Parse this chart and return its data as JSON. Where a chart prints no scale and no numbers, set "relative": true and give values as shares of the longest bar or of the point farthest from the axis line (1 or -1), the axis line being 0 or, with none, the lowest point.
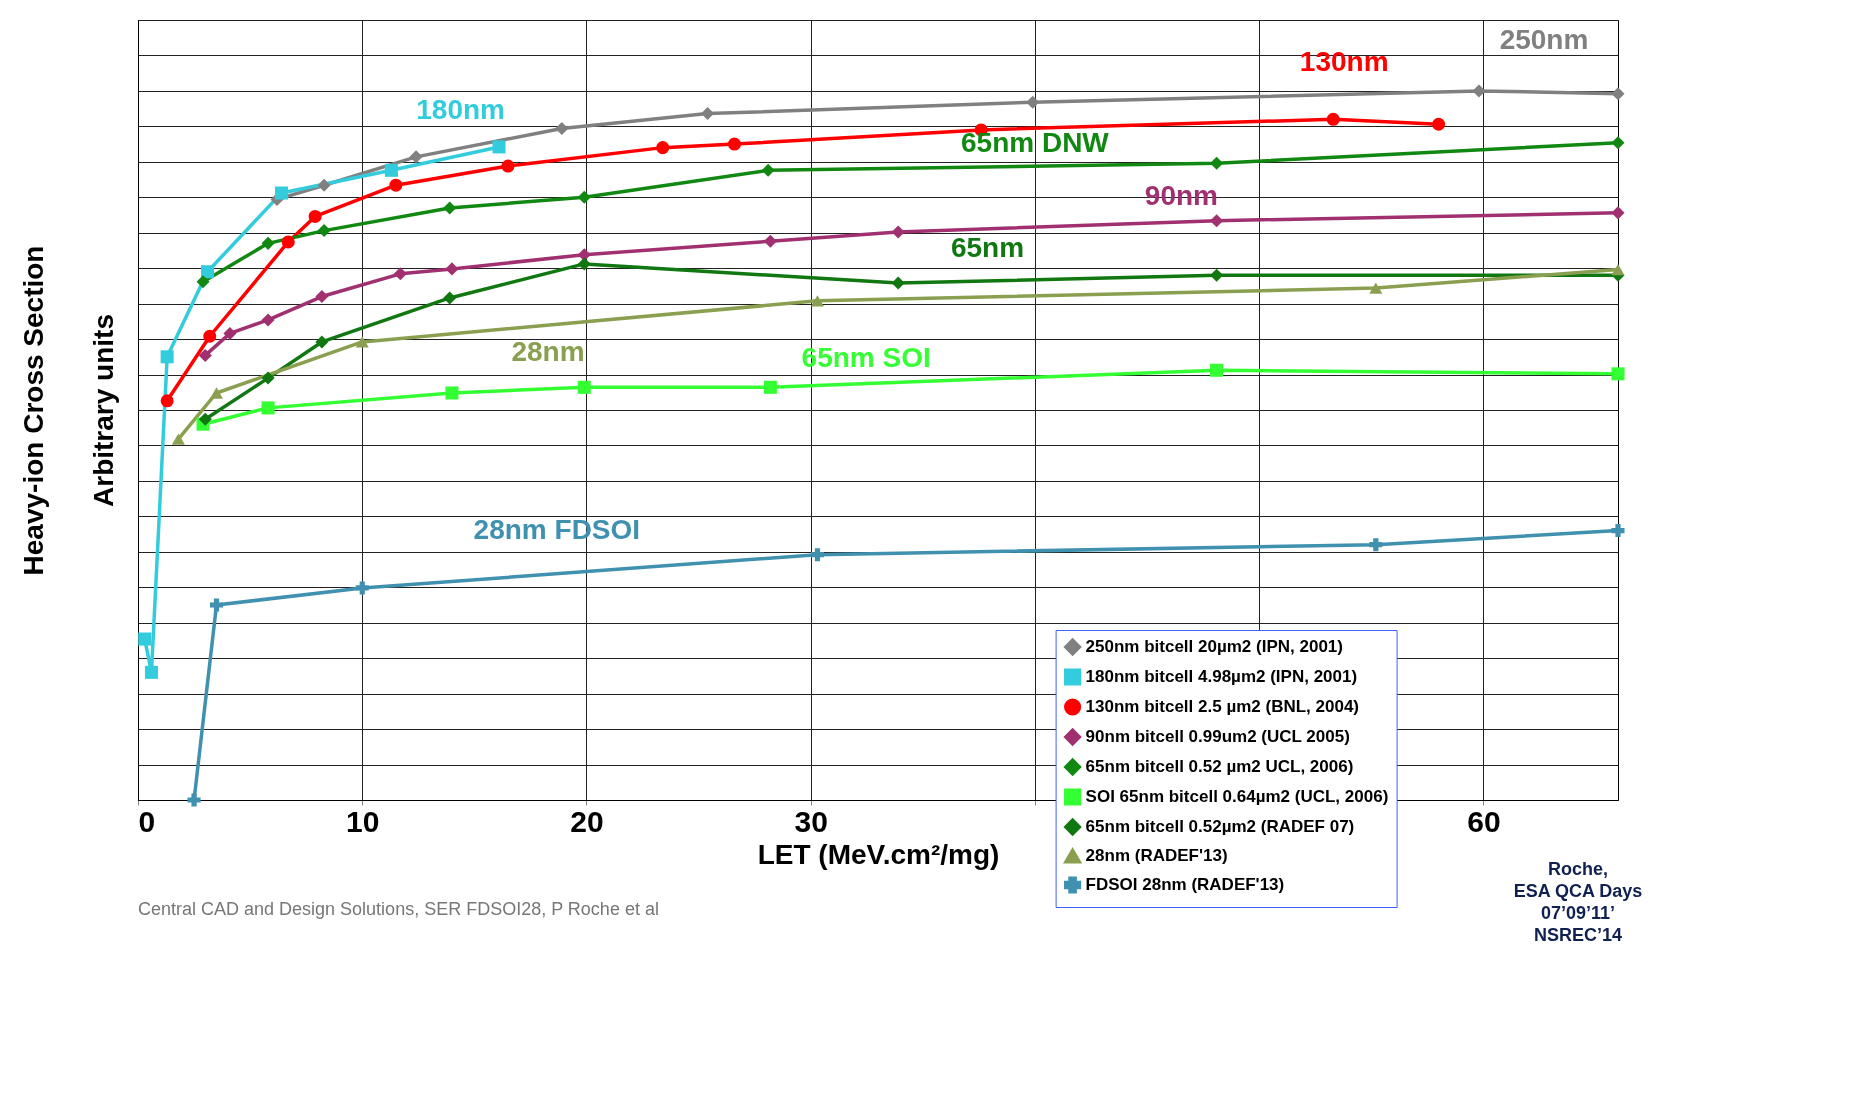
{
  "chart_data": {
    "type": "line",
    "xlabel": "LET (MeV.cm²/mg)",
    "ylabel": "Heavy-ion Cross Section\nArbitrary units",
    "relative": true,
    "xlim": [
      0,
      66
    ],
    "xticks": [
      0,
      10,
      20,
      30,
      {
        "value": 40,
        "label": null
      },
      {
        "value": 50,
        "label": null
      },
      60
    ],
    "grid": true,
    "legend": "bottom right",
    "series": [
      {
        "name": "250nm bitcell 20µm2 (IPN, 2001)",
        "color": "#808080",
        "marker": "diamond",
        "x": [
          6.2,
          8.3,
          12.4,
          18.9,
          25.4,
          39.9,
          59.8,
          66
        ],
        "values": [
          0.847,
          0.867,
          0.907,
          0.947,
          0.968,
          0.984,
          1.0,
          0.996
        ]
      },
      {
        "name": "180nm bitcell 4.98µm2 (IPN, 2001)",
        "color": "#33ccdd",
        "marker": "square",
        "x": [
          0.3,
          0.6,
          1.3,
          3.1,
          6.4,
          11.3,
          16.1
        ],
        "values": [
          0.227,
          0.18,
          0.625,
          0.745,
          0.856,
          0.888,
          0.921
        ]
      },
      {
        "name": "130nm bitcell 2.5 µm2 (BNL, 2004)",
        "color": "#ff0000",
        "marker": "circle",
        "x": [
          1.3,
          3.2,
          6.7,
          7.9,
          11.5,
          16.5,
          23.4,
          26.6,
          37.6,
          53.3,
          58.0
        ],
        "values": [
          0.563,
          0.654,
          0.787,
          0.823,
          0.867,
          0.894,
          0.92,
          0.925,
          0.945,
          0.96,
          0.953
        ]
      },
      {
        "name": "90nm bitcell 0.99um2 (UCL 2005)",
        "color": "#a03070",
        "marker": "diamond",
        "x": [
          3.0,
          4.1,
          5.8,
          8.2,
          11.7,
          14.0,
          19.9,
          28.2,
          33.9,
          48.1,
          66
        ],
        "values": [
          0.627,
          0.658,
          0.677,
          0.71,
          0.742,
          0.749,
          0.769,
          0.788,
          0.801,
          0.817,
          0.828
        ]
      },
      {
        "name": "65nm bitcell 0.52 µm2 UCL, 2006)",
        "color": "#118811",
        "marker": "diamond",
        "x": [
          2.9,
          5.8,
          8.3,
          13.9,
          19.9,
          28.1,
          48.1,
          66
        ],
        "values": [
          0.731,
          0.785,
          0.803,
          0.835,
          0.85,
          0.888,
          0.898,
          0.927
        ]
      },
      {
        "name": "SOI 65nm bitcell 0.64µm2 (UCL, 2006)",
        "color": "#33ff33",
        "marker": "square",
        "x": [
          2.9,
          5.8,
          14.0,
          19.9,
          28.2,
          48.1,
          66
        ],
        "values": [
          0.53,
          0.553,
          0.574,
          0.582,
          0.582,
          0.606,
          0.601
        ]
      },
      {
        "name": "65nm bitcell 0.52µm2 (RADEF 07)",
        "color": "#117711",
        "marker": "diamond",
        "x": [
          3.0,
          5.8,
          8.2,
          13.9,
          19.9,
          33.9,
          48.1,
          66
        ],
        "values": [
          0.537,
          0.595,
          0.646,
          0.708,
          0.756,
          0.729,
          0.74,
          0.74
        ]
      },
      {
        "name": "28nm (RADEF'13)",
        "color": "#8aa050",
        "marker": "triangle",
        "x": [
          1.8,
          3.5,
          10.0,
          30.3,
          55.2,
          66
        ],
        "values": [
          0.509,
          0.574,
          0.646,
          0.704,
          0.722,
          0.748
        ]
      },
      {
        "name": "FDSOI 28nm (RADEF'13)",
        "color": "#4090b0",
        "marker": "cross",
        "x": [
          2.5,
          3.5,
          10.0,
          30.3,
          55.2,
          66
        ],
        "values": [
          0,
          0.275,
          0.299,
          0.346,
          0.36,
          0.38
        ]
      }
    ],
    "annotations": [
      "250nm",
      "130nm",
      "180nm",
      "65nm DNW",
      "90nm",
      "65nm",
      "28nm",
      "65nm SOI",
      "28nm FDSOI",
      "Central CAD and Design Solutions, SER FDSOI28, P Roche et al",
      "Roche,\nESA QCA Days\n07’09’11’\nNSREC’14"
    ]
  }
}
